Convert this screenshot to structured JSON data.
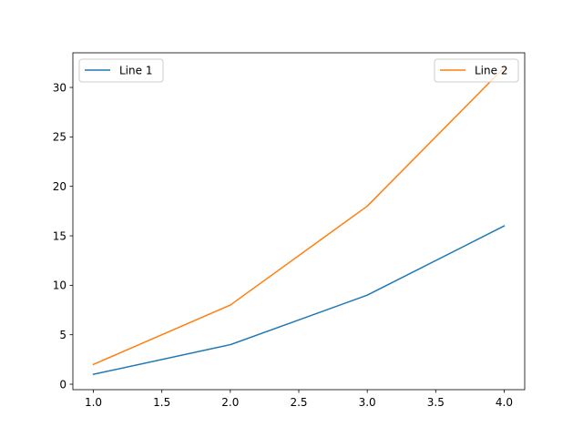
{
  "chart_data": {
    "type": "line",
    "x": [
      1.0,
      2.0,
      3.0,
      4.0
    ],
    "series": [
      {
        "name": "Line 1",
        "values": [
          1,
          4,
          9,
          16
        ],
        "color": "#1f77b4"
      },
      {
        "name": "Line 2",
        "values": [
          2,
          8,
          18,
          32
        ],
        "color": "#ff7f0e"
      }
    ],
    "xlim": [
      0.85,
      4.15
    ],
    "ylim": [
      -0.55,
      33.5
    ],
    "xticks": [
      1.0,
      1.5,
      2.0,
      2.5,
      3.0,
      3.5,
      4.0
    ],
    "xtick_labels": [
      "1.0",
      "1.5",
      "2.0",
      "2.5",
      "3.0",
      "3.5",
      "4.0"
    ],
    "yticks": [
      0,
      5,
      10,
      15,
      20,
      25,
      30
    ],
    "ytick_labels": [
      "0",
      "5",
      "10",
      "15",
      "20",
      "25",
      "30"
    ],
    "grid": false,
    "legends": [
      {
        "placement": "top-left",
        "entries": [
          "Line 1"
        ]
      },
      {
        "placement": "top-right",
        "entries": [
          "Line 2"
        ]
      }
    ],
    "title": "",
    "xlabel": "",
    "ylabel": ""
  }
}
